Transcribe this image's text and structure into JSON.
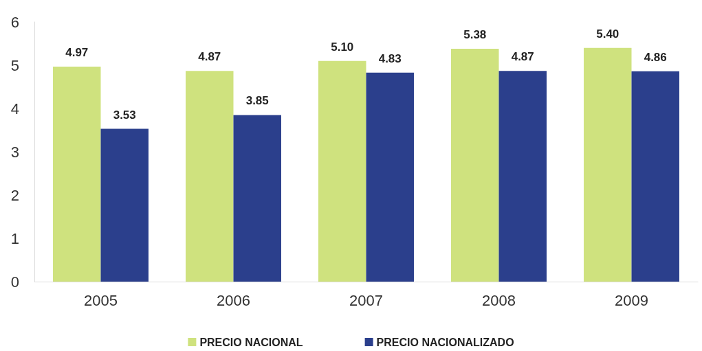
{
  "chart_data": {
    "type": "bar",
    "categories": [
      "2005",
      "2006",
      "2007",
      "2008",
      "2009"
    ],
    "series": [
      {
        "name": "PRECIO NACIONAL",
        "color": "#cfe27e",
        "values": [
          4.97,
          4.87,
          5.1,
          5.38,
          5.4
        ],
        "value_labels": [
          "4.97",
          "4.87",
          "5.10",
          "5.38",
          "5.40"
        ]
      },
      {
        "name": "PRECIO NACIONALIZADO",
        "color": "#2b3f8c",
        "values": [
          3.53,
          3.85,
          4.83,
          4.87,
          4.86
        ],
        "value_labels": [
          "3.53",
          "3.85",
          "4.83",
          "4.87",
          "4.86"
        ]
      }
    ],
    "ylim": [
      0,
      6
    ],
    "yticks": [
      0,
      1,
      2,
      3,
      4,
      5,
      6
    ],
    "grid": false,
    "legend": "bottom"
  }
}
